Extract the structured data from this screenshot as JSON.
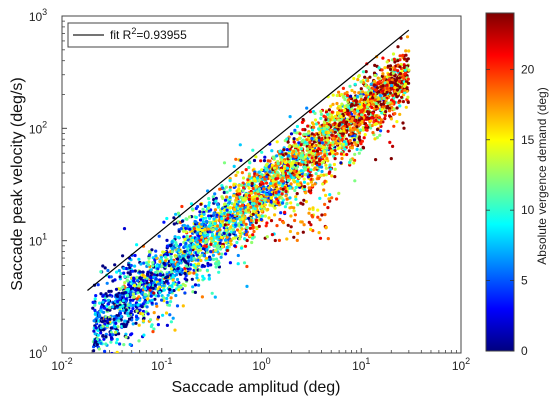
{
  "chart_data": {
    "type": "scatter",
    "title": "",
    "xlabel": "Saccade amplitud (deg)",
    "ylabel": "Saccade peak velocity (deg/s)",
    "x_scale": "log",
    "y_scale": "log",
    "xlim": [
      0.01,
      100
    ],
    "ylim": [
      1,
      1000
    ],
    "x_ticks": [
      {
        "base": "10",
        "exp": "-2"
      },
      {
        "base": "10",
        "exp": "-1"
      },
      {
        "base": "10",
        "exp": "0"
      },
      {
        "base": "10",
        "exp": "1"
      },
      {
        "base": "10",
        "exp": "2"
      }
    ],
    "y_ticks": [
      {
        "base": "10",
        "exp": "0"
      },
      {
        "base": "10",
        "exp": "1"
      },
      {
        "base": "10",
        "exp": "2"
      },
      {
        "base": "10",
        "exp": "3"
      }
    ],
    "grid": false,
    "legend": {
      "position": "top-left",
      "label_prefix": "fit R",
      "label_sup": "2",
      "label_suffix": "=0.93955"
    },
    "fit_line": {
      "type": "power-law",
      "r_squared": 0.93955,
      "x": [
        0.018,
        30
      ],
      "y": [
        3.6,
        750
      ],
      "color": "#000000"
    },
    "scatter": {
      "color_variable": "Absolute vergence demand (deg)",
      "colormap": "jet",
      "clim": [
        0,
        24
      ],
      "main_trend": {
        "x_range": [
          0.02,
          30
        ],
        "y_at_x1": 28,
        "slope": 0.72,
        "approx_points": 4000
      },
      "lower_branch": {
        "x_range": [
          0.5,
          5
        ],
        "y_range": [
          10,
          40
        ]
      }
    },
    "colorbar": {
      "label": "Absolute vergence demand (deg)",
      "ticks": [
        "0",
        "5",
        "10",
        "15",
        "20"
      ],
      "tick_values": [
        0,
        5,
        10,
        15,
        20
      ],
      "range": [
        0,
        24
      ],
      "position": "right"
    }
  }
}
